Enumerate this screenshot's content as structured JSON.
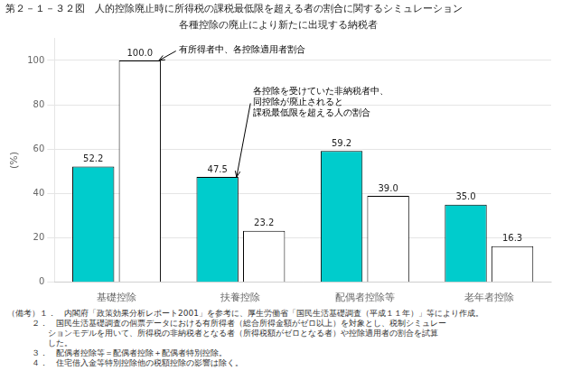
{
  "chart_data": {
    "type": "bar",
    "title": "第２－１－３２図　人的控除廃止時に所得税の課税最低限を超える者の割合に関するシミュレーション",
    "subtitle": "各種控除の廃止により新たに出現する納税者",
    "categories": [
      "基礎控除",
      "扶養控除",
      "配偶者控除等",
      "老年者控除"
    ],
    "series": [
      {
        "color": "#00CCCC",
        "values": [
          52.2,
          47.5,
          59.2,
          35.0
        ],
        "value_labels": [
          "52.2",
          "47.5",
          "59.2",
          "35.0"
        ]
      },
      {
        "color": "#FFFFFF",
        "values": [
          100.0,
          23.2,
          39.0,
          16.3
        ],
        "value_labels": [
          "100.0",
          "23.2",
          "39.0",
          "16.3"
        ]
      }
    ],
    "ylabel": "(%)",
    "ylim": [
      0,
      110
    ],
    "yticks": [
      0,
      20,
      40,
      60,
      80,
      100
    ],
    "grid": true,
    "data_labels": true,
    "annotations": [
      "有所得者中、各控除適用者割合",
      "各控除を受けていた非納税者中、\n同控除が廃止されると\n課税最低限を超える人の割合"
    ],
    "notes": [
      "（備考）１．　内閣府「政策効果分析レポート2001」を参考に、厚生労働省「国民生活基礎調査（平成１１年）」等により作成。",
      "　　　２．　国民生活基礎調査の個票データにおける有所得者（総合所得金額がゼロ以上）を対象とし、税制シミュレー",
      "　　　　　ションモデルを用いて、所得税の非納税者となる者（所得税額がゼロとなる者）や控除適用者の割合を試算",
      "　　　　　した。",
      "　　　３．　配偶者控除等＝配偶者控除＋配偶者特別控除。",
      "　　　４．　住宅借入金等特別控除他の税額控除の影響は除く。"
    ]
  }
}
